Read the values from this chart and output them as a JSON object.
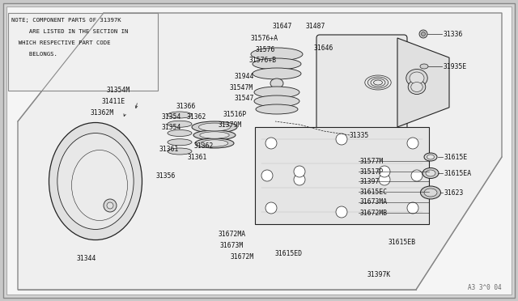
{
  "bg_color": "#c8c8c8",
  "inner_bg": "#ffffff",
  "line_color": "#222222",
  "text_color": "#111111",
  "font_size": 5.8,
  "note_text_lines": [
    "NOTE; COMPONENT PARTS OF 31397K",
    "     ARE LISTED IN THE SECTION IN",
    "  WHICH RESPECTIVE PART CODE",
    "     BELONGS."
  ],
  "footer_text": "A3 3^0 04"
}
